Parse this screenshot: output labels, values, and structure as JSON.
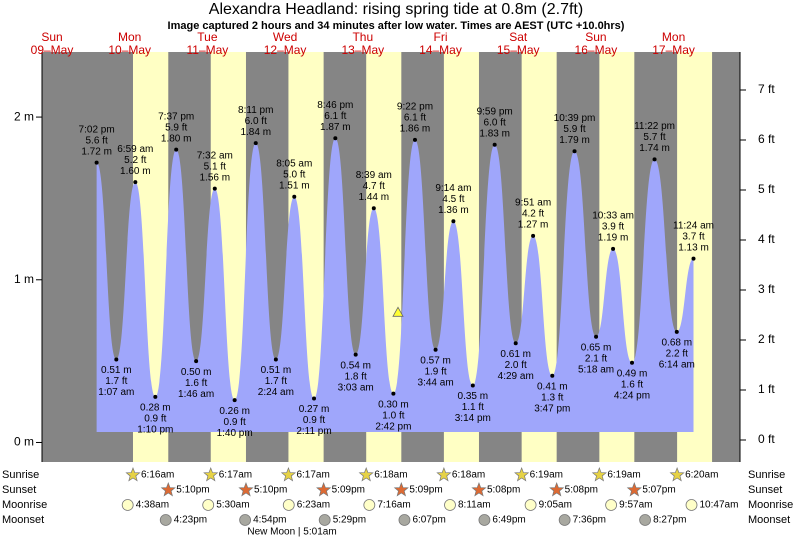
{
  "chart_data": {
    "type": "tide",
    "title": "Alexandra Headland: rising  spring tide at 0.8m (2.7ft)",
    "subtitle": "Image captured 2 hours and 34 minutes after low water. Times are AEST (UTC +10.0hrs)",
    "current_level": 0.8,
    "ylim": [
      -0.12,
      2.4
    ],
    "yticks": [
      {
        "value": 0,
        "label": "0 m"
      },
      {
        "value": 1,
        "label": "1 m"
      },
      {
        "value": 2,
        "label": "2 m"
      }
    ],
    "y2lim": [
      -0.44,
      7.76
    ],
    "y2ticks": [
      {
        "value": 0,
        "label": "0 ft"
      },
      {
        "value": 1,
        "label": "1 ft"
      },
      {
        "value": 2,
        "label": "2 ft"
      },
      {
        "value": 3,
        "label": "3 ft"
      },
      {
        "value": 4,
        "label": "4 ft"
      },
      {
        "value": 5,
        "label": "5 ft"
      },
      {
        "value": 6,
        "label": "6 ft"
      },
      {
        "value": 7,
        "label": "7 ft"
      }
    ],
    "row_labels": [
      "Sunrise",
      "Sunset",
      "Moonrise",
      "Moonset"
    ],
    "new_moon": "New Moon | 5:01am",
    "days": [
      {
        "weekday": "Sun",
        "date": "09–May",
        "times": [
          "7:02 pm"
        ],
        "values": [
          1.72
        ],
        "value_labels": [
          "1.72 m"
        ],
        "ft": [
          5.6
        ],
        "ft_labels": [
          "5.6 ft"
        ]
      },
      {
        "weekday": "Mon",
        "date": "10–May",
        "times": [
          "1:07 am",
          "6:59 am",
          "1:10 pm",
          "7:37 pm"
        ],
        "values": [
          0.51,
          1.6,
          0.28,
          1.8
        ],
        "value_labels": [
          "0.51 m",
          "1.60 m",
          "0.28 m",
          "1.80 m"
        ],
        "ft": [
          1.7,
          5.2,
          0.9,
          5.9
        ],
        "ft_labels": [
          "1.7 ft",
          "5.2 ft",
          "0.9 ft",
          "5.9 ft"
        ],
        "sunrise": "6:16am",
        "sunset": "5:10pm",
        "moonrise": "4:38am",
        "moonset": "4:23pm"
      },
      {
        "weekday": "Tue",
        "date": "11–May",
        "times": [
          "1:46 am",
          "7:32 am",
          "1:40 pm",
          "8:11 pm"
        ],
        "values": [
          0.5,
          1.56,
          0.26,
          1.84
        ],
        "value_labels": [
          "0.50 m",
          "1.56 m",
          "0.26 m",
          "1.84 m"
        ],
        "ft": [
          1.6,
          5.1,
          0.9,
          6.0
        ],
        "ft_labels": [
          "1.6 ft",
          "5.1 ft",
          "0.9 ft",
          "6.0 ft"
        ],
        "sunrise": "6:17am",
        "sunset": "5:10pm",
        "moonrise": "5:30am",
        "moonset": "4:54pm"
      },
      {
        "weekday": "Wed",
        "date": "12–May",
        "times": [
          "2:24 am",
          "8:05 am",
          "2:11 pm",
          "8:46 pm"
        ],
        "values": [
          0.51,
          1.51,
          0.27,
          1.87
        ],
        "value_labels": [
          "0.51 m",
          "1.51 m",
          "0.27 m",
          "1.87 m"
        ],
        "ft": [
          1.7,
          5.0,
          0.9,
          6.1
        ],
        "ft_labels": [
          "1.7 ft",
          "5.0 ft",
          "0.9 ft",
          "6.1 ft"
        ],
        "sunrise": "6:17am",
        "sunset": "5:09pm",
        "moonrise": "6:23am",
        "moonset": "5:29pm"
      },
      {
        "weekday": "Thu",
        "date": "13–May",
        "times": [
          "3:03 am",
          "8:39 am",
          "2:42 pm",
          "9:22 pm"
        ],
        "values": [
          0.54,
          1.44,
          0.3,
          1.86
        ],
        "value_labels": [
          "0.54 m",
          "1.44 m",
          "0.30 m",
          "1.86 m"
        ],
        "ft": [
          1.8,
          4.7,
          1.0,
          6.1
        ],
        "ft_labels": [
          "1.8 ft",
          "4.7 ft",
          "1.0 ft",
          "6.1 ft"
        ],
        "sunrise": "6:18am",
        "sunset": "5:09pm",
        "moonrise": "7:16am",
        "moonset": "6:07pm"
      },
      {
        "weekday": "Fri",
        "date": "14–May",
        "times": [
          "3:44 am",
          "9:14 am",
          "3:14 pm",
          "9:59 pm"
        ],
        "values": [
          0.57,
          1.36,
          0.35,
          1.83
        ],
        "value_labels": [
          "0.57 m",
          "1.36 m",
          "0.35 m",
          "1.83 m"
        ],
        "ft": [
          1.9,
          4.5,
          1.1,
          6.0
        ],
        "ft_labels": [
          "1.9 ft",
          "4.5 ft",
          "1.1 ft",
          "6.0 ft"
        ],
        "sunrise": "6:18am",
        "sunset": "5:08pm",
        "moonrise": "8:11am",
        "moonset": "6:49pm"
      },
      {
        "weekday": "Sat",
        "date": "15–May",
        "times": [
          "4:29 am",
          "9:51 am",
          "3:47 pm",
          "10:39 pm"
        ],
        "values": [
          0.61,
          1.27,
          0.41,
          1.79
        ],
        "value_labels": [
          "0.61 m",
          "1.27 m",
          "0.41 m",
          "1.79 m"
        ],
        "ft": [
          2.0,
          4.2,
          1.3,
          5.9
        ],
        "ft_labels": [
          "2.0 ft",
          "4.2 ft",
          "1.3 ft",
          "5.9 ft"
        ],
        "sunrise": "6:19am",
        "sunset": "5:08pm",
        "moonrise": "9:05am",
        "moonset": "7:36pm"
      },
      {
        "weekday": "Sun",
        "date": "16–May",
        "times": [
          "5:18 am",
          "10:33 am",
          "4:24 pm",
          "11:22 pm"
        ],
        "values": [
          0.65,
          1.19,
          0.49,
          1.74
        ],
        "value_labels": [
          "0.65 m",
          "1.19 m",
          "0.49 m",
          "1.74 m"
        ],
        "ft": [
          2.1,
          3.9,
          1.6,
          5.7
        ],
        "ft_labels": [
          "2.1 ft",
          "3.9 ft",
          "1.6 ft",
          "5.7 ft"
        ],
        "sunrise": "6:19am",
        "sunset": "5:07pm",
        "moonrise": "9:57am",
        "moonset": "8:27pm"
      },
      {
        "weekday": "Mon",
        "date": "17–May",
        "times": [
          "6:14 am",
          "11:24 am"
        ],
        "values": [
          0.68,
          1.13
        ],
        "value_labels": [
          "0.68 m",
          "1.13 m"
        ],
        "ft": [
          2.2,
          3.7
        ],
        "ft_labels": [
          "2.2 ft",
          "3.7 ft"
        ],
        "sunrise": "6:20am",
        "moonrise": "10:47am"
      }
    ]
  }
}
